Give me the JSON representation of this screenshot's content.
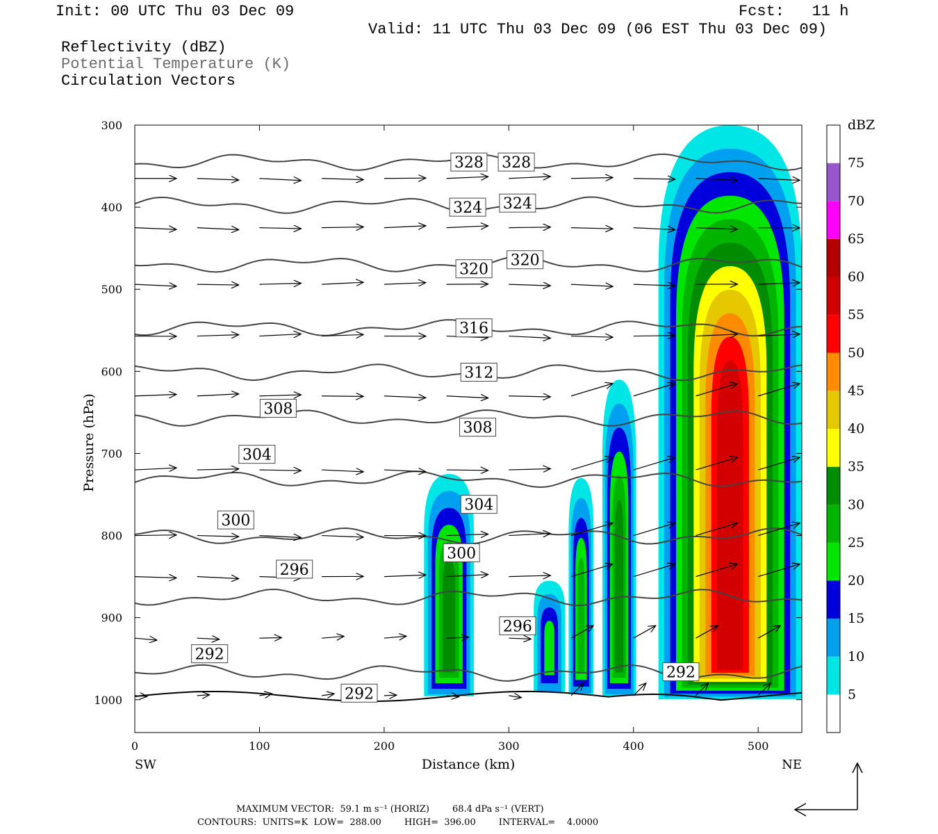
{
  "header": {
    "init": "Init: 00 UTC Thu 03 Dec 09",
    "fcst": "Fcst:   11 h",
    "valid": "Valid: 11 UTC Thu 03 Dec 09 (06 EST Thu 03 Dec 09)",
    "variables": [
      "Reflectivity (dBZ)",
      "Potential Temperature (K)",
      "Circulation Vectors"
    ]
  },
  "footer": {
    "line1": "MAXIMUM VECTOR:  59.1 m s⁻¹ (HORIZ)        68.4 dPa s⁻¹ (VERT)",
    "line2": "CONTOURS:  UNITS=K  LOW=  288.00        HIGH=  396.00        INTERVAL=    4.0000"
  },
  "colors": {
    "scale": [
      "#00e6e6",
      "#00a0f0",
      "#0000dc",
      "#00e600",
      "#00b400",
      "#008c00",
      "#ffff00",
      "#e6c800",
      "#ff8c00",
      "#ff0000",
      "#d20000",
      "#b40000",
      "#ff00ff",
      "#9955cc"
    ],
    "contour": "#444444"
  },
  "chart_data": {
    "type": "heatmap",
    "title": "",
    "xlabel": "Distance (km)",
    "ylabel": "Pressure (hPa)",
    "xlim": [
      0,
      535
    ],
    "ylim": [
      1040,
      300
    ],
    "x_ticks": [
      0,
      100,
      200,
      300,
      400,
      500
    ],
    "y_ticks": [
      300,
      400,
      500,
      600,
      700,
      800,
      900,
      1000
    ],
    "x_end_labels": [
      "SW",
      "NE"
    ],
    "colorbar": {
      "unit": "dBZ",
      "levels": [
        5,
        10,
        15,
        20,
        25,
        30,
        35,
        40,
        45,
        50,
        55,
        60,
        65,
        70,
        75
      ]
    },
    "reflectivity_cores": [
      {
        "x": [
          232,
          272
        ],
        "top_hPa": 725,
        "max_dBZ": 30
      },
      {
        "x": [
          320,
          345
        ],
        "top_hPa": 855,
        "max_dBZ": 20
      },
      {
        "x": [
          348,
          368
        ],
        "top_hPa": 730,
        "max_dBZ": 25
      },
      {
        "x": [
          375,
          402
        ],
        "top_hPa": 610,
        "max_dBZ": 30
      },
      {
        "x": [
          420,
          535
        ],
        "top_hPa": 300,
        "max_dBZ": 55
      }
    ],
    "contour_labels": [
      {
        "label": "328",
        "x": 268,
        "p": 345
      },
      {
        "label": "328",
        "x": 306,
        "p": 345
      },
      {
        "label": "324",
        "x": 267,
        "p": 400
      },
      {
        "label": "324",
        "x": 307,
        "p": 395
      },
      {
        "label": "320",
        "x": 272,
        "p": 475
      },
      {
        "label": "320",
        "x": 313,
        "p": 464
      },
      {
        "label": "316",
        "x": 272,
        "p": 547
      },
      {
        "label": "312",
        "x": 276,
        "p": 601
      },
      {
        "label": "308",
        "x": 115,
        "p": 645
      },
      {
        "label": "308",
        "x": 275,
        "p": 668
      },
      {
        "label": "304",
        "x": 98,
        "p": 701
      },
      {
        "label": "304",
        "x": 276,
        "p": 762
      },
      {
        "label": "300",
        "x": 81,
        "p": 781
      },
      {
        "label": "300",
        "x": 262,
        "p": 821
      },
      {
        "label": "296",
        "x": 128,
        "p": 841
      },
      {
        "label": "296",
        "x": 307,
        "p": 910
      },
      {
        "label": "292",
        "x": 60,
        "p": 944
      },
      {
        "label": "292",
        "x": 180,
        "p": 992
      },
      {
        "label": "292",
        "x": 438,
        "p": 966
      }
    ],
    "vector_rows_hPa": [
      365,
      425,
      494,
      557,
      630,
      720,
      800,
      850,
      925,
      995
    ],
    "vector_cols_km": [
      0,
      50,
      100,
      150,
      200,
      250,
      300,
      350,
      400,
      450,
      500
    ]
  }
}
